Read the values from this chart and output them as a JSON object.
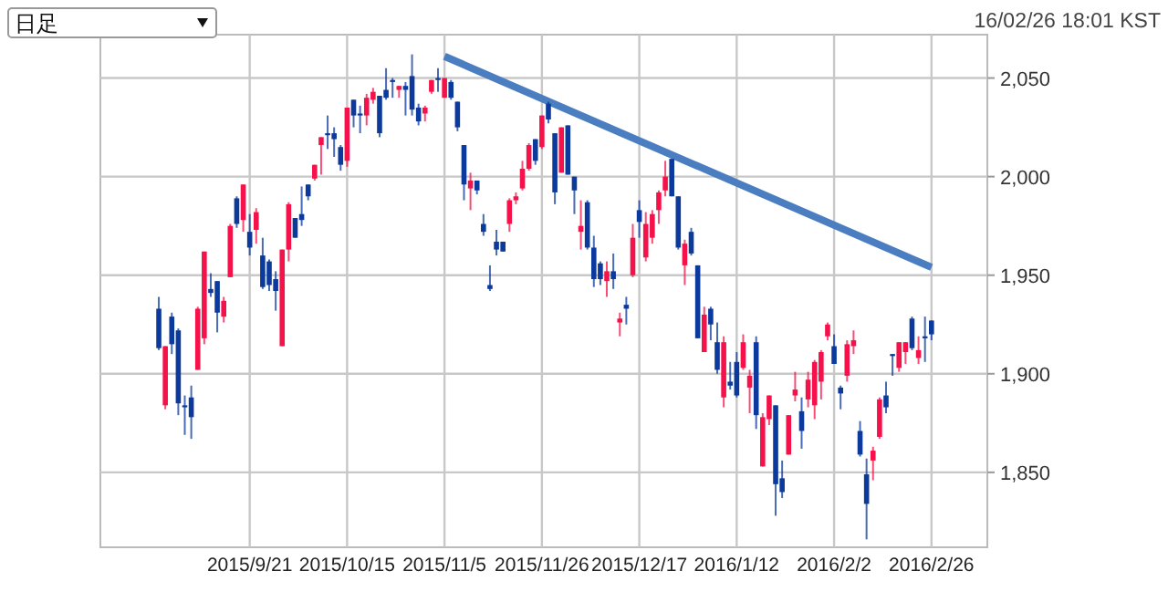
{
  "chart_data": {
    "type": "candlestick",
    "annotations": [
      "日足",
      "16/02/26 18:01 KST"
    ],
    "categories": [
      null,
      null,
      null,
      null,
      null,
      null,
      null,
      null,
      null,
      null,
      null,
      null,
      null,
      null,
      "2015/9/21",
      null,
      null,
      null,
      null,
      null,
      null,
      null,
      null,
      null,
      null,
      null,
      null,
      null,
      null,
      "2015/10/15",
      null,
      null,
      null,
      null,
      null,
      null,
      null,
      null,
      null,
      null,
      null,
      null,
      null,
      null,
      "2015/11/5",
      null,
      null,
      null,
      null,
      null,
      null,
      null,
      null,
      null,
      null,
      null,
      null,
      null,
      null,
      "2015/11/26",
      null,
      null,
      null,
      null,
      null,
      null,
      null,
      null,
      null,
      null,
      null,
      null,
      null,
      null,
      "2015/12/17",
      null,
      null,
      null,
      null,
      null,
      null,
      null,
      null,
      null,
      null,
      null,
      null,
      null,
      null,
      "2016/1/12",
      null,
      null,
      null,
      null,
      null,
      null,
      null,
      null,
      null,
      null,
      null,
      null,
      null,
      null,
      "2016/2/2",
      null,
      null,
      null,
      null,
      null,
      null,
      null,
      null,
      null,
      null,
      null,
      null,
      null,
      null,
      "2016/2/26"
    ],
    "ohlc": [
      [
        1933,
        1939,
        1912,
        1913
      ],
      [
        1884,
        1914,
        1882,
        1914
      ],
      [
        1929,
        1931,
        1910,
        1915
      ],
      [
        1922,
        1923,
        1879,
        1885
      ],
      [
        1884,
        1889,
        1869,
        1883
      ],
      [
        1888,
        1894,
        1867,
        1878
      ],
      [
        1902,
        1934,
        1902,
        1933
      ],
      [
        1918,
        1962,
        1915,
        1962
      ],
      [
        1943,
        1951,
        1939,
        1941
      ],
      [
        1947,
        1947,
        1921,
        1931
      ],
      [
        1929,
        1939,
        1926,
        1937
      ],
      [
        1949,
        1976,
        1949,
        1975
      ],
      [
        1989,
        1990,
        1974,
        1976
      ],
      [
        1978,
        1996,
        1972,
        1996
      ],
      [
        1972,
        1981,
        1960,
        1964
      ],
      [
        1973,
        1984,
        1966,
        1982
      ],
      [
        1960,
        1969,
        1943,
        1944
      ],
      [
        1957,
        1958,
        1942,
        1945
      ],
      [
        1948,
        1952,
        1932,
        1942
      ],
      [
        1914,
        1963,
        1914,
        1963
      ],
      [
        1963,
        1987,
        1957,
        1986
      ],
      [
        1979,
        1979,
        1969,
        1969
      ],
      [
        1981,
        1995,
        1975,
        1978
      ],
      [
        1996,
        1996,
        1988,
        1990
      ],
      [
        1999,
        2006,
        1998,
        2006
      ],
      [
        2016,
        2020,
        2001,
        2020
      ],
      [
        2022,
        2031,
        2014,
        2021
      ],
      [
        2022,
        2025,
        2010,
        2019
      ],
      [
        2015,
        2016,
        2003,
        2006
      ],
      [
        2008,
        2035,
        2005,
        2035
      ],
      [
        2039,
        2039,
        2025,
        2031
      ],
      [
        2032,
        2036,
        2022,
        2031
      ],
      [
        2031,
        2042,
        2026,
        2040
      ],
      [
        2039,
        2045,
        2037,
        2043
      ],
      [
        2041,
        2041,
        2020,
        2022
      ],
      [
        2044,
        2055,
        2039,
        2040
      ],
      [
        2049,
        2050,
        2040,
        2048
      ],
      [
        2044,
        2046,
        2040,
        2046
      ],
      [
        2046,
        2048,
        2031,
        2044
      ],
      [
        2051,
        2062,
        2031,
        2034
      ],
      [
        2035,
        2037,
        2026,
        2028
      ],
      [
        2032,
        2036,
        2028,
        2035
      ],
      [
        2043,
        2049,
        2042,
        2049
      ],
      [
        2050,
        2055,
        2043,
        2049
      ],
      [
        2040,
        2050,
        2040,
        2050
      ],
      [
        2048,
        2049,
        2039,
        2040
      ],
      [
        2038,
        2038,
        2023,
        2025
      ],
      [
        2016,
        2016,
        1988,
        1996
      ],
      [
        1994,
        2002,
        1983,
        1998
      ],
      [
        1998,
        1998,
        1991,
        1993
      ],
      [
        1976,
        1981,
        1970,
        1972
      ],
      [
        1945,
        1955,
        1942,
        1943
      ],
      [
        1967,
        1973,
        1960,
        1963
      ],
      [
        1967,
        1967,
        1962,
        1962
      ],
      [
        1976,
        1989,
        1972,
        1988
      ],
      [
        1988,
        1992,
        1986,
        1990
      ],
      [
        1994,
        2008,
        1993,
        2004
      ],
      [
        2004,
        2017,
        2003,
        2016
      ],
      [
        2019,
        2019,
        2006,
        2008
      ],
      [
        2015,
        2031,
        2014,
        2031
      ],
      [
        2037,
        2038,
        2027,
        2029
      ],
      [
        2022,
        2022,
        1986,
        1992
      ],
      [
        2002,
        2025,
        2002,
        2025
      ],
      [
        2026,
        2026,
        2001,
        2001
      ],
      [
        2000,
        2000,
        1981,
        1993
      ],
      [
        1972,
        1988,
        1963,
        1975
      ],
      [
        1987,
        1988,
        1963,
        1964
      ],
      [
        1964,
        1970,
        1944,
        1948
      ],
      [
        1956,
        1957,
        1945,
        1948
      ],
      [
        1947,
        1957,
        1939,
        1952
      ],
      [
        1952,
        1961,
        1943,
        1948
      ],
      [
        1926,
        1931,
        1919,
        1928
      ],
      [
        1935,
        1939,
        1925,
        1933
      ],
      [
        1950,
        1976,
        1949,
        1969
      ],
      [
        1983,
        1988,
        1969,
        1977
      ],
      [
        1959,
        1982,
        1957,
        1976
      ],
      [
        1969,
        1983,
        1966,
        1981
      ],
      [
        1983,
        1993,
        1976,
        1992
      ],
      [
        1993,
        2008,
        1990,
        2000
      ],
      [
        2009,
        2009,
        1990,
        1990
      ],
      [
        1990,
        1990,
        1963,
        1964
      ],
      [
        1955,
        1968,
        1945,
        1966
      ],
      [
        1972,
        1974,
        1960,
        1961
      ],
      [
        1955,
        1955,
        1918,
        1918
      ],
      [
        1911,
        1934,
        1911,
        1930
      ],
      [
        1933,
        1934,
        1917,
        1925
      ],
      [
        1916,
        1926,
        1900,
        1902
      ],
      [
        1888,
        1919,
        1883,
        1916
      ],
      [
        1896,
        1906,
        1892,
        1894
      ],
      [
        1906,
        1911,
        1888,
        1889
      ],
      [
        1903,
        1920,
        1902,
        1916
      ],
      [
        1893,
        1902,
        1880,
        1899
      ],
      [
        1916,
        1919,
        1872,
        1879
      ],
      [
        1853,
        1880,
        1853,
        1878
      ],
      [
        1877,
        1889,
        1874,
        1889
      ],
      [
        1884,
        1884,
        1828,
        1844
      ],
      [
        1847,
        1856,
        1837,
        1840
      ],
      [
        1859,
        1879,
        1859,
        1879
      ],
      [
        1889,
        1901,
        1886,
        1892
      ],
      [
        1881,
        1888,
        1862,
        1871
      ],
      [
        1887,
        1901,
        1883,
        1897
      ],
      [
        1884,
        1907,
        1877,
        1906
      ],
      [
        1896,
        1912,
        1887,
        1911
      ],
      [
        1919,
        1926,
        1917,
        1925
      ],
      [
        1914,
        1920,
        1905,
        1905
      ],
      [
        1893,
        1894,
        1882,
        1890
      ],
      [
        1899,
        1917,
        1896,
        1915
      ],
      [
        1914,
        1922,
        1910,
        1917
      ],
      [
        1871,
        1876,
        1858,
        1859
      ],
      [
        1849,
        1857,
        1816,
        1834
      ],
      [
        1856,
        1863,
        1846,
        1861
      ],
      [
        1868,
        1888,
        1867,
        1887
      ],
      [
        1889,
        1896,
        1880,
        1883
      ],
      [
        1910,
        1910,
        1899,
        1909
      ],
      [
        1903,
        1916,
        1901,
        1916
      ],
      [
        1911,
        1916,
        1905,
        1916
      ],
      [
        1928,
        1929,
        1912,
        1913
      ],
      [
        1908,
        1919,
        1905,
        1912
      ],
      [
        1919,
        1929,
        1906,
        1918
      ],
      [
        1927,
        1927,
        1917,
        1920
      ]
    ],
    "colors": [
      "#0c3a9c",
      "#f5124a",
      "#0c3a9c",
      "#0c3a9c",
      "#0c3a9c",
      "#0c3a9c",
      "#f5124a",
      "#f5124a",
      "#0c3a9c",
      "#0c3a9c",
      "#f5124a",
      "#f5124a",
      "#0c3a9c",
      "#f5124a",
      "#0c3a9c",
      "#f5124a",
      "#0c3a9c",
      "#0c3a9c",
      "#0c3a9c",
      "#f5124a",
      "#f5124a",
      "#0c3a9c",
      "#0c3a9c",
      "#0c3a9c",
      "#f5124a",
      "#f5124a",
      "#0c3a9c",
      "#0c3a9c",
      "#0c3a9c",
      "#f5124a",
      "#0c3a9c",
      "#0c3a9c",
      "#f5124a",
      "#f5124a",
      "#0c3a9c",
      "#0c3a9c",
      "#0c3a9c",
      "#f5124a",
      "#0c3a9c",
      "#0c3a9c",
      "#0c3a9c",
      "#f5124a",
      "#f5124a",
      "#0c3a9c",
      "#f5124a",
      "#0c3a9c",
      "#0c3a9c",
      "#0c3a9c",
      "#f5124a",
      "#0c3a9c",
      "#0c3a9c",
      "#0c3a9c",
      "#0c3a9c",
      "#0c3a9c",
      "#f5124a",
      "#f5124a",
      "#f5124a",
      "#f5124a",
      "#0c3a9c",
      "#f5124a",
      "#0c3a9c",
      "#0c3a9c",
      "#f5124a",
      "#0c3a9c",
      "#0c3a9c",
      "#f5124a",
      "#0c3a9c",
      "#0c3a9c",
      "#0c3a9c",
      "#f5124a",
      "#0c3a9c",
      "#f5124a",
      "#0c3a9c",
      "#f5124a",
      "#0c3a9c",
      "#f5124a",
      "#f5124a",
      "#f5124a",
      "#f5124a",
      "#0c3a9c",
      "#0c3a9c",
      "#f5124a",
      "#0c3a9c",
      "#0c3a9c",
      "#f5124a",
      "#0c3a9c",
      "#0c3a9c",
      "#f5124a",
      "#0c3a9c",
      "#0c3a9c",
      "#f5124a",
      "#f5124a",
      "#0c3a9c",
      "#f5124a",
      "#f5124a",
      "#0c3a9c",
      "#0c3a9c",
      "#f5124a",
      "#f5124a",
      "#0c3a9c",
      "#f5124a",
      "#f5124a",
      "#f5124a",
      "#f5124a",
      "#0c3a9c",
      "#0c3a9c",
      "#f5124a",
      "#f5124a",
      "#0c3a9c",
      "#0c3a9c",
      "#f5124a",
      "#f5124a",
      "#0c3a9c",
      "#0c3a9c",
      "#f5124a",
      "#f5124a",
      "#0c3a9c",
      "#f5124a",
      "#0c3a9c",
      "#0c3a9c"
    ],
    "series": [
      {
        "type": "line",
        "x": [
          "2015/11/5",
          "2016/2/26"
        ],
        "values": [
          2061,
          1954
        ],
        "color": "#4a7ec0"
      }
    ],
    "ylim": [
      1812,
      2072
    ],
    "yticks": [
      {
        "value": 1850,
        "label": "1,850"
      },
      {
        "value": 1900,
        "label": "1,900"
      },
      {
        "value": 1950,
        "label": "1,950"
      },
      {
        "value": 2000,
        "label": "2,000"
      },
      {
        "value": 2050,
        "label": "2,050"
      }
    ],
    "grid": true
  }
}
